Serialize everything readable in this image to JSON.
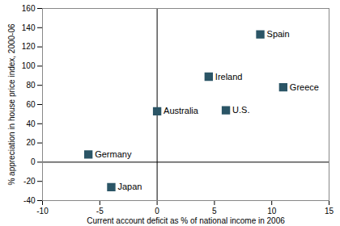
{
  "chart_data": {
    "type": "scatter",
    "x_label": "Current account deficit as % of national income in 2006",
    "y_label": "% appreciation in house price index, 2000-06",
    "labels": [
      "Spain",
      "Ireland",
      "Greece",
      "Australia",
      "U.S.",
      "Germany",
      "Japan"
    ],
    "x": [
      9,
      4.5,
      11,
      0,
      6,
      -6,
      -4
    ],
    "values": [
      133,
      89,
      78,
      53,
      54,
      8,
      -26
    ],
    "color": "#2b5566",
    "marker": "square",
    "xlim": [
      -10,
      15
    ],
    "xticks": [
      -10,
      -5,
      0,
      5,
      10,
      15
    ],
    "ylim": [
      -40,
      160
    ],
    "yticks": [
      -40,
      -20,
      0,
      20,
      40,
      60,
      80,
      100,
      120,
      140,
      160
    ],
    "grid": false
  }
}
